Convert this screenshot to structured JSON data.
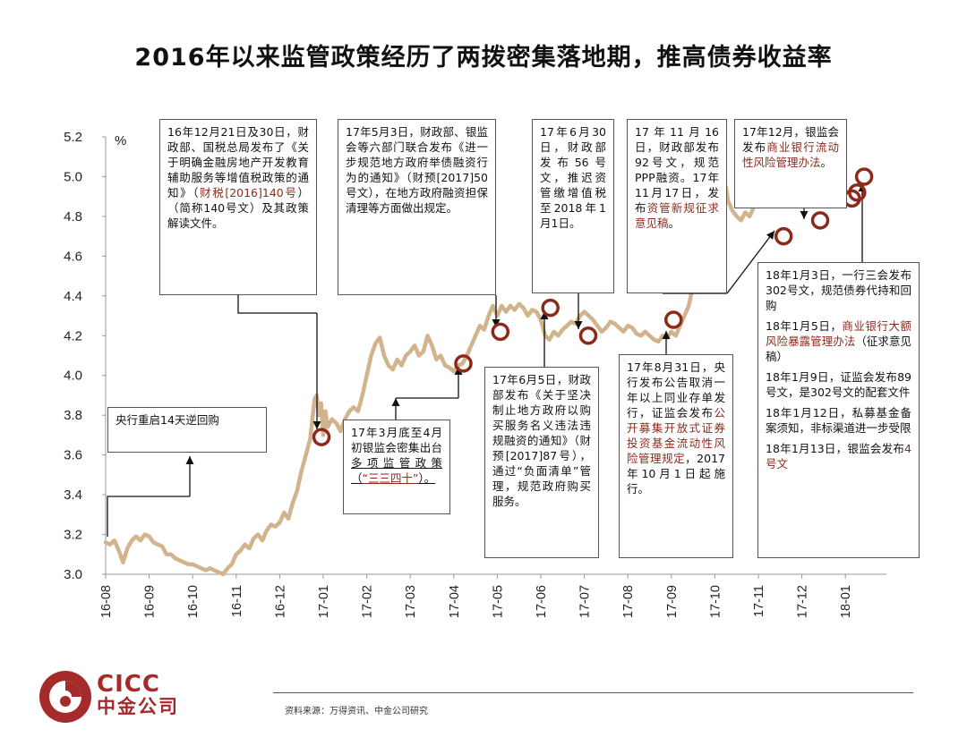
{
  "title": "2016年以来监管政策经历了两拨密集落地期，推高债券收益率",
  "chart_data": {
    "type": "line",
    "ylabel": "%",
    "ylim": [
      3.0,
      5.2
    ],
    "yticks": [
      "3.0",
      "3.2",
      "3.4",
      "3.6",
      "3.8",
      "4.0",
      "4.2",
      "4.4",
      "4.6",
      "4.8",
      "5.0",
      "5.2"
    ],
    "categories": [
      "16-08",
      "16-09",
      "16-10",
      "16-11",
      "16-12",
      "17-01",
      "17-02",
      "17-03",
      "17-04",
      "17-05",
      "17-06",
      "17-07",
      "17-08",
      "17-09",
      "17-10",
      "17-11",
      "17-12",
      "18-01"
    ],
    "line_color": "#d2b48c",
    "marker_color": "#8b2a1a",
    "series": [
      {
        "values": [
          [
            0,
            3.16
          ],
          [
            0.1,
            3.15
          ],
          [
            0.2,
            3.17
          ],
          [
            0.3,
            3.12
          ],
          [
            0.4,
            3.06
          ],
          [
            0.5,
            3.13
          ],
          [
            0.6,
            3.17
          ],
          [
            0.7,
            3.19
          ],
          [
            0.8,
            3.17
          ],
          [
            0.9,
            3.2
          ],
          [
            1.0,
            3.19
          ],
          [
            1.1,
            3.16
          ],
          [
            1.2,
            3.15
          ],
          [
            1.3,
            3.14
          ],
          [
            1.4,
            3.1
          ],
          [
            1.5,
            3.1
          ],
          [
            1.6,
            3.08
          ],
          [
            1.7,
            3.07
          ],
          [
            1.8,
            3.06
          ],
          [
            1.9,
            3.05
          ],
          [
            2.0,
            3.05
          ],
          [
            2.1,
            3.04
          ],
          [
            2.2,
            3.03
          ],
          [
            2.3,
            3.02
          ],
          [
            2.4,
            3.03
          ],
          [
            2.5,
            3.02
          ],
          [
            2.6,
            3.01
          ],
          [
            2.7,
            3.0
          ],
          [
            2.8,
            3.03
          ],
          [
            2.9,
            3.05
          ],
          [
            3.0,
            3.1
          ],
          [
            3.1,
            3.12
          ],
          [
            3.2,
            3.15
          ],
          [
            3.3,
            3.13
          ],
          [
            3.4,
            3.18
          ],
          [
            3.5,
            3.2
          ],
          [
            3.6,
            3.17
          ],
          [
            3.7,
            3.22
          ],
          [
            3.8,
            3.25
          ],
          [
            3.9,
            3.24
          ],
          [
            4.0,
            3.26
          ],
          [
            4.1,
            3.31
          ],
          [
            4.2,
            3.28
          ],
          [
            4.3,
            3.36
          ],
          [
            4.4,
            3.42
          ],
          [
            4.5,
            3.52
          ],
          [
            4.6,
            3.6
          ],
          [
            4.7,
            3.68
          ],
          [
            4.75,
            3.78
          ],
          [
            4.8,
            3.88
          ],
          [
            4.85,
            3.9
          ],
          [
            4.9,
            3.8
          ],
          [
            4.95,
            3.86
          ],
          [
            5.0,
            3.7
          ],
          [
            5.05,
            3.82
          ],
          [
            5.1,
            3.74
          ],
          [
            5.2,
            3.78
          ],
          [
            5.3,
            3.76
          ],
          [
            5.4,
            3.72
          ],
          [
            5.5,
            3.78
          ],
          [
            5.6,
            3.82
          ],
          [
            5.7,
            3.84
          ],
          [
            5.8,
            3.82
          ],
          [
            5.9,
            3.9
          ],
          [
            6.0,
            4.0
          ],
          [
            6.1,
            4.1
          ],
          [
            6.2,
            4.16
          ],
          [
            6.3,
            4.19
          ],
          [
            6.4,
            4.1
          ],
          [
            6.5,
            4.05
          ],
          [
            6.6,
            4.03
          ],
          [
            6.7,
            4.08
          ],
          [
            6.8,
            4.05
          ],
          [
            6.9,
            4.1
          ],
          [
            7.0,
            4.12
          ],
          [
            7.1,
            4.15
          ],
          [
            7.2,
            4.1
          ],
          [
            7.3,
            4.12
          ],
          [
            7.4,
            4.2
          ],
          [
            7.5,
            4.15
          ],
          [
            7.6,
            4.08
          ],
          [
            7.7,
            4.1
          ],
          [
            7.8,
            4.05
          ],
          [
            7.9,
            4.04
          ],
          [
            8.0,
            4.02
          ],
          [
            8.1,
            4.05
          ],
          [
            8.2,
            4.06
          ],
          [
            8.3,
            4.1
          ],
          [
            8.4,
            4.15
          ],
          [
            8.5,
            4.2
          ],
          [
            8.6,
            4.25
          ],
          [
            8.7,
            4.23
          ],
          [
            8.8,
            4.3
          ],
          [
            8.9,
            4.35
          ],
          [
            9.0,
            4.3
          ],
          [
            9.1,
            4.35
          ],
          [
            9.2,
            4.32
          ],
          [
            9.3,
            4.35
          ],
          [
            9.4,
            4.33
          ],
          [
            9.5,
            4.36
          ],
          [
            9.6,
            4.34
          ],
          [
            9.7,
            4.3
          ],
          [
            9.8,
            4.33
          ],
          [
            9.9,
            4.32
          ],
          [
            10.0,
            4.28
          ],
          [
            10.1,
            4.2
          ],
          [
            10.2,
            4.18
          ],
          [
            10.3,
            4.22
          ],
          [
            10.4,
            4.2
          ],
          [
            10.5,
            4.23
          ],
          [
            10.6,
            4.25
          ],
          [
            10.7,
            4.27
          ],
          [
            10.8,
            4.26
          ],
          [
            10.9,
            4.3
          ],
          [
            11.0,
            4.32
          ],
          [
            11.1,
            4.3
          ],
          [
            11.2,
            4.28
          ],
          [
            11.3,
            4.25
          ],
          [
            11.4,
            4.22
          ],
          [
            11.5,
            4.24
          ],
          [
            11.6,
            4.27
          ],
          [
            11.7,
            4.26
          ],
          [
            11.8,
            4.24
          ],
          [
            11.9,
            4.22
          ],
          [
            12.0,
            4.25
          ],
          [
            12.1,
            4.24
          ],
          [
            12.2,
            4.21
          ],
          [
            12.3,
            4.2
          ],
          [
            12.4,
            4.22
          ],
          [
            12.5,
            4.2
          ],
          [
            12.6,
            4.18
          ],
          [
            12.7,
            4.17
          ],
          [
            12.8,
            4.2
          ],
          [
            12.9,
            4.19
          ],
          [
            13.0,
            4.22
          ],
          [
            13.1,
            4.2
          ],
          [
            13.2,
            4.25
          ],
          [
            13.3,
            4.3
          ],
          [
            13.4,
            4.35
          ],
          [
            13.5,
            4.45
          ],
          [
            13.6,
            4.5
          ],
          [
            13.7,
            4.55
          ],
          [
            13.8,
            4.6
          ],
          [
            13.9,
            4.65
          ],
          [
            14.0,
            4.72
          ],
          [
            14.1,
            4.78
          ],
          [
            14.2,
            4.86
          ],
          [
            14.25,
            4.95
          ],
          [
            14.3,
            4.88
          ],
          [
            14.4,
            4.83
          ],
          [
            14.5,
            4.8
          ],
          [
            14.6,
            4.78
          ],
          [
            14.7,
            4.82
          ],
          [
            14.8,
            4.8
          ],
          [
            14.9,
            4.85
          ],
          [
            15.0,
            4.88
          ],
          [
            15.1,
            4.86
          ],
          [
            15.2,
            4.9
          ],
          [
            15.3,
            4.95
          ],
          [
            15.4,
            4.98
          ],
          [
            15.5,
            5.02
          ],
          [
            15.6,
            5.05
          ],
          [
            15.7,
            5.1
          ],
          [
            15.8,
            5.13
          ],
          [
            15.9,
            5.08
          ],
          [
            16.0,
            5.1
          ],
          [
            16.1,
            5.09
          ]
        ]
      }
    ],
    "markers": [
      {
        "x": 4.96,
        "y": 3.69
      },
      {
        "x": 8.22,
        "y": 4.06
      },
      {
        "x": 9.07,
        "y": 4.22
      },
      {
        "x": 10.22,
        "y": 4.34
      },
      {
        "x": 11.09,
        "y": 4.2
      },
      {
        "x": 13.05,
        "y": 4.28
      },
      {
        "x": 15.58,
        "y": 4.7
      },
      {
        "x": 16.42,
        "y": 4.78
      },
      {
        "x": 17.15,
        "y": 4.89
      },
      {
        "x": 17.27,
        "y": 4.92
      },
      {
        "x": 17.43,
        "y": 5.0
      }
    ]
  },
  "notes": {
    "n1": {
      "lines": [
        "16年12月21日及30日，财政部、国税总局发布了《关于明确金融房地产开发教育辅助服务等增值税政策的通知》（"
      ],
      "red": "财税[2016]140号",
      "tail": "）（简称140号文）及其政策解读文件。"
    },
    "n2": {
      "text": "17年5月3日，财政部、银监会等六部门联合发布《进一步规范地方政府举债融资行为的通知》（财预[2017]50号文），在地方政府融资担保清理等方面做出规定。"
    },
    "n3": {
      "text": "17年6月30日，财政部发布56号文，推迟资管缴增值税至2018年1月1日。"
    },
    "n4": {
      "a": "17年11月16日，财政部发布92号文，规范PPP融资。17年11月17日，发布",
      "red": "资管新规征求意见稿",
      "b": "。"
    },
    "n5": {
      "a": "17年12月，银监会发布",
      "red": "商业银行流动性风险管理办法",
      "b": "。"
    },
    "n6": {
      "text": "央行重启14天逆回购"
    },
    "n7": {
      "a": "17年3月底至4月初银监会密集出台",
      "ul": "多项监管政策",
      "b": "（",
      "red": "“三三四十”",
      "c": "）。"
    },
    "n8": {
      "text": "17年6月5日，财政部发布《关于坚决制止地方政府以购买服务名义违法违规融资的通知》（财预[2017]87号），通过“负面清单”管理，规范政府购买服务。"
    },
    "n9": {
      "a": "17年8月31日，央行发布公告取消一年以上同业存单发行，证监会发布",
      "red": "公开募集开放式证券投资基金流动性风险管理规定",
      "b": "，2017年10月1日起施行。"
    },
    "n10": {
      "p1": "18年1月3日，一行三会发布302号文，规范债券代持和回购",
      "p2a": "18年1月5日，",
      "p2red": "商业银行大额风险暴露管理办法",
      "p2b": "（征求意见稿）",
      "p3": "18年1月9日，证监会发布89号文，是302号文的配套文件",
      "p4": "18年1月12日，私募基金备案须知，非标渠道进一步受限",
      "p5a": "18年1月13日，银监会发布",
      "p5red": "4号文"
    }
  },
  "source": "资料来源：万得资讯、中金公司研究",
  "logo": {
    "en": "CICC",
    "cn": "中金公司"
  }
}
